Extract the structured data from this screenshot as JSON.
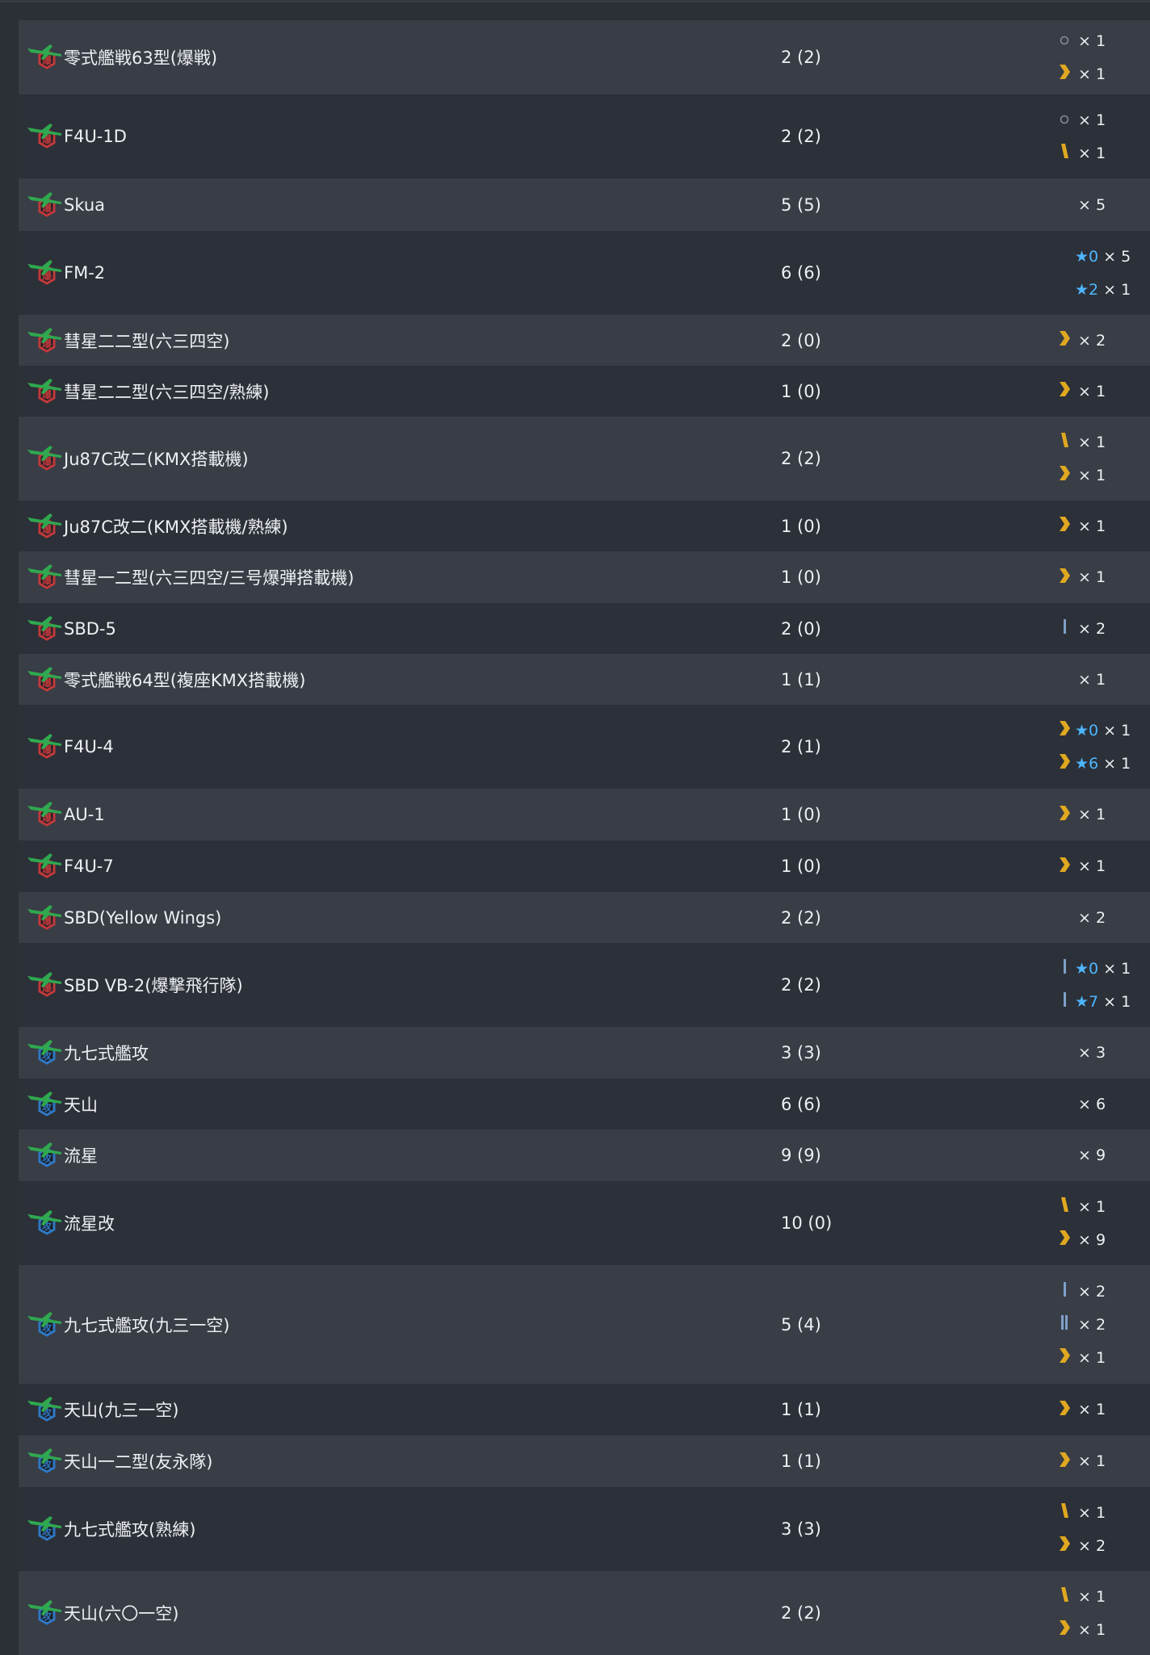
{
  "colors": {
    "row_odd": "#383d46",
    "row_even": "#2c3038",
    "star": "#4db6ff",
    "chevron": "#e0a820",
    "bomber_badge": "#c0393b",
    "torpedo_badge": "#2f78c4",
    "plane": "#2fa84f"
  },
  "rows": [
    {
      "name": "零式艦戦63型(爆戦)",
      "count": "2 (2)",
      "type": "bomber",
      "prof": [
        {
          "mark": "ring",
          "star": "",
          "qty": "× 1"
        },
        {
          "mark": "chevron",
          "star": "",
          "qty": "× 1"
        }
      ]
    },
    {
      "name": "F4U-1D",
      "count": "2 (2)",
      "type": "bomber",
      "prof": [
        {
          "mark": "ring",
          "star": "",
          "qty": "× 1"
        },
        {
          "mark": "slash-gold",
          "star": "",
          "qty": "× 1"
        }
      ]
    },
    {
      "name": "Skua",
      "count": "5 (5)",
      "type": "bomber",
      "prof": [
        {
          "mark": "",
          "star": "",
          "qty": "× 5"
        }
      ]
    },
    {
      "name": "FM-2",
      "count": "6 (6)",
      "type": "bomber",
      "prof": [
        {
          "mark": "",
          "star": "★0",
          "qty": "× 5"
        },
        {
          "mark": "",
          "star": "★2",
          "qty": "× 1"
        }
      ]
    },
    {
      "name": "彗星二二型(六三四空)",
      "count": "2 (0)",
      "type": "bomber",
      "prof": [
        {
          "mark": "chevron",
          "star": "",
          "qty": "× 2"
        }
      ]
    },
    {
      "name": "彗星二二型(六三四空/熟練)",
      "count": "1 (0)",
      "type": "bomber",
      "prof": [
        {
          "mark": "chevron",
          "star": "",
          "qty": "× 1"
        }
      ]
    },
    {
      "name": "Ju87C改二(KMX搭載機)",
      "count": "2 (2)",
      "type": "bomber",
      "prof": [
        {
          "mark": "slash-gold",
          "star": "",
          "qty": "× 1"
        },
        {
          "mark": "chevron",
          "star": "",
          "qty": "× 1"
        }
      ]
    },
    {
      "name": "Ju87C改二(KMX搭載機/熟練)",
      "count": "1 (0)",
      "type": "bomber",
      "prof": [
        {
          "mark": "chevron",
          "star": "",
          "qty": "× 1"
        }
      ]
    },
    {
      "name": "彗星一二型(六三四空/三号爆弾搭載機)",
      "count": "1 (0)",
      "type": "bomber",
      "prof": [
        {
          "mark": "chevron",
          "star": "",
          "qty": "× 1"
        }
      ]
    },
    {
      "name": "SBD-5",
      "count": "2 (0)",
      "type": "bomber",
      "prof": [
        {
          "mark": "bar1",
          "star": "",
          "qty": "× 2"
        }
      ]
    },
    {
      "name": "零式艦戦64型(複座KMX搭載機)",
      "count": "1 (1)",
      "type": "bomber",
      "prof": [
        {
          "mark": "",
          "star": "",
          "qty": "× 1"
        }
      ]
    },
    {
      "name": "F4U-4",
      "count": "2 (1)",
      "type": "bomber",
      "prof": [
        {
          "mark": "chevron",
          "star": "★0",
          "qty": "× 1"
        },
        {
          "mark": "chevron",
          "star": "★6",
          "qty": "× 1"
        }
      ]
    },
    {
      "name": "AU-1",
      "count": "1 (0)",
      "type": "bomber",
      "prof": [
        {
          "mark": "chevron",
          "star": "",
          "qty": "× 1"
        }
      ]
    },
    {
      "name": "F4U-7",
      "count": "1 (0)",
      "type": "bomber",
      "prof": [
        {
          "mark": "chevron",
          "star": "",
          "qty": "× 1"
        }
      ]
    },
    {
      "name": "SBD(Yellow Wings)",
      "count": "2 (2)",
      "type": "bomber",
      "prof": [
        {
          "mark": "",
          "star": "",
          "qty": "× 2"
        }
      ]
    },
    {
      "name": "SBD VB-2(爆撃飛行隊)",
      "count": "2 (2)",
      "type": "bomber",
      "prof": [
        {
          "mark": "bar1",
          "star": "★0",
          "qty": "× 1"
        },
        {
          "mark": "bar1",
          "star": "★7",
          "qty": "× 1"
        }
      ]
    },
    {
      "name": "九七式艦攻",
      "count": "3 (3)",
      "type": "torpedo",
      "prof": [
        {
          "mark": "",
          "star": "",
          "qty": "× 3"
        }
      ]
    },
    {
      "name": "天山",
      "count": "6 (6)",
      "type": "torpedo",
      "prof": [
        {
          "mark": "",
          "star": "",
          "qty": "× 6"
        }
      ]
    },
    {
      "name": "流星",
      "count": "9 (9)",
      "type": "torpedo",
      "prof": [
        {
          "mark": "",
          "star": "",
          "qty": "× 9"
        }
      ]
    },
    {
      "name": "流星改",
      "count": "10 (0)",
      "type": "torpedo",
      "prof": [
        {
          "mark": "slash-gold",
          "star": "",
          "qty": "× 1"
        },
        {
          "mark": "chevron",
          "star": "",
          "qty": "× 9"
        }
      ]
    },
    {
      "name": "九七式艦攻(九三一空)",
      "count": "5 (4)",
      "type": "torpedo",
      "prof": [
        {
          "mark": "bar1",
          "star": "",
          "qty": "× 2"
        },
        {
          "mark": "bar2",
          "star": "",
          "qty": "× 2"
        },
        {
          "mark": "chevron",
          "star": "",
          "qty": "× 1"
        }
      ]
    },
    {
      "name": "天山(九三一空)",
      "count": "1 (1)",
      "type": "torpedo",
      "prof": [
        {
          "mark": "chevron",
          "star": "",
          "qty": "× 1"
        }
      ]
    },
    {
      "name": "天山一二型(友永隊)",
      "count": "1 (1)",
      "type": "torpedo",
      "prof": [
        {
          "mark": "chevron",
          "star": "",
          "qty": "× 1"
        }
      ]
    },
    {
      "name": "九七式艦攻(熟練)",
      "count": "3 (3)",
      "type": "torpedo",
      "prof": [
        {
          "mark": "slash-gold",
          "star": "",
          "qty": "× 1"
        },
        {
          "mark": "chevron",
          "star": "",
          "qty": "× 2"
        }
      ]
    },
    {
      "name": "天山(六〇一空)",
      "count": "2 (2)",
      "type": "torpedo",
      "prof": [
        {
          "mark": "slash-gold",
          "star": "",
          "qty": "× 1"
        },
        {
          "mark": "chevron",
          "star": "",
          "qty": "× 1"
        }
      ]
    }
  ]
}
